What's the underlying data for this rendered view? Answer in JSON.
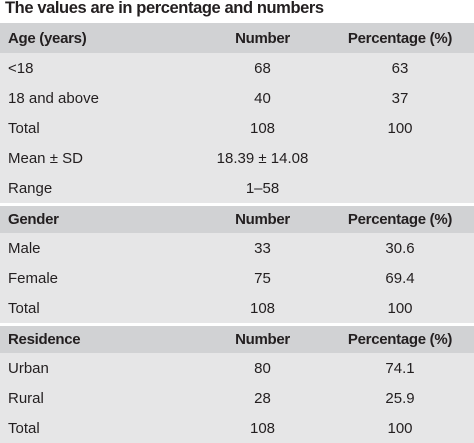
{
  "caption": "The values are in percentage and numbers",
  "sections": [
    {
      "header": [
        "Age (years)",
        "Number",
        "Percentage (%)"
      ],
      "rows": [
        [
          "<18",
          "68",
          "63"
        ],
        [
          "18 and above",
          "40",
          "37"
        ],
        [
          "Total",
          "108",
          "100"
        ],
        [
          "Mean ± SD",
          "18.39 ± 14.08",
          ""
        ],
        [
          "Range",
          "1–58",
          ""
        ]
      ]
    },
    {
      "header": [
        "Gender",
        "Number",
        "Percentage (%)"
      ],
      "rows": [
        [
          "Male",
          "33",
          "30.6"
        ],
        [
          "Female",
          "75",
          "69.4"
        ],
        [
          "Total",
          "108",
          "100"
        ]
      ]
    },
    {
      "header": [
        "Residence",
        "Number",
        "Percentage (%)"
      ],
      "rows": [
        [
          "Urban",
          "80",
          "74.1"
        ],
        [
          "Rural",
          "28",
          "25.9"
        ],
        [
          "Total",
          "108",
          "100"
        ]
      ]
    }
  ]
}
